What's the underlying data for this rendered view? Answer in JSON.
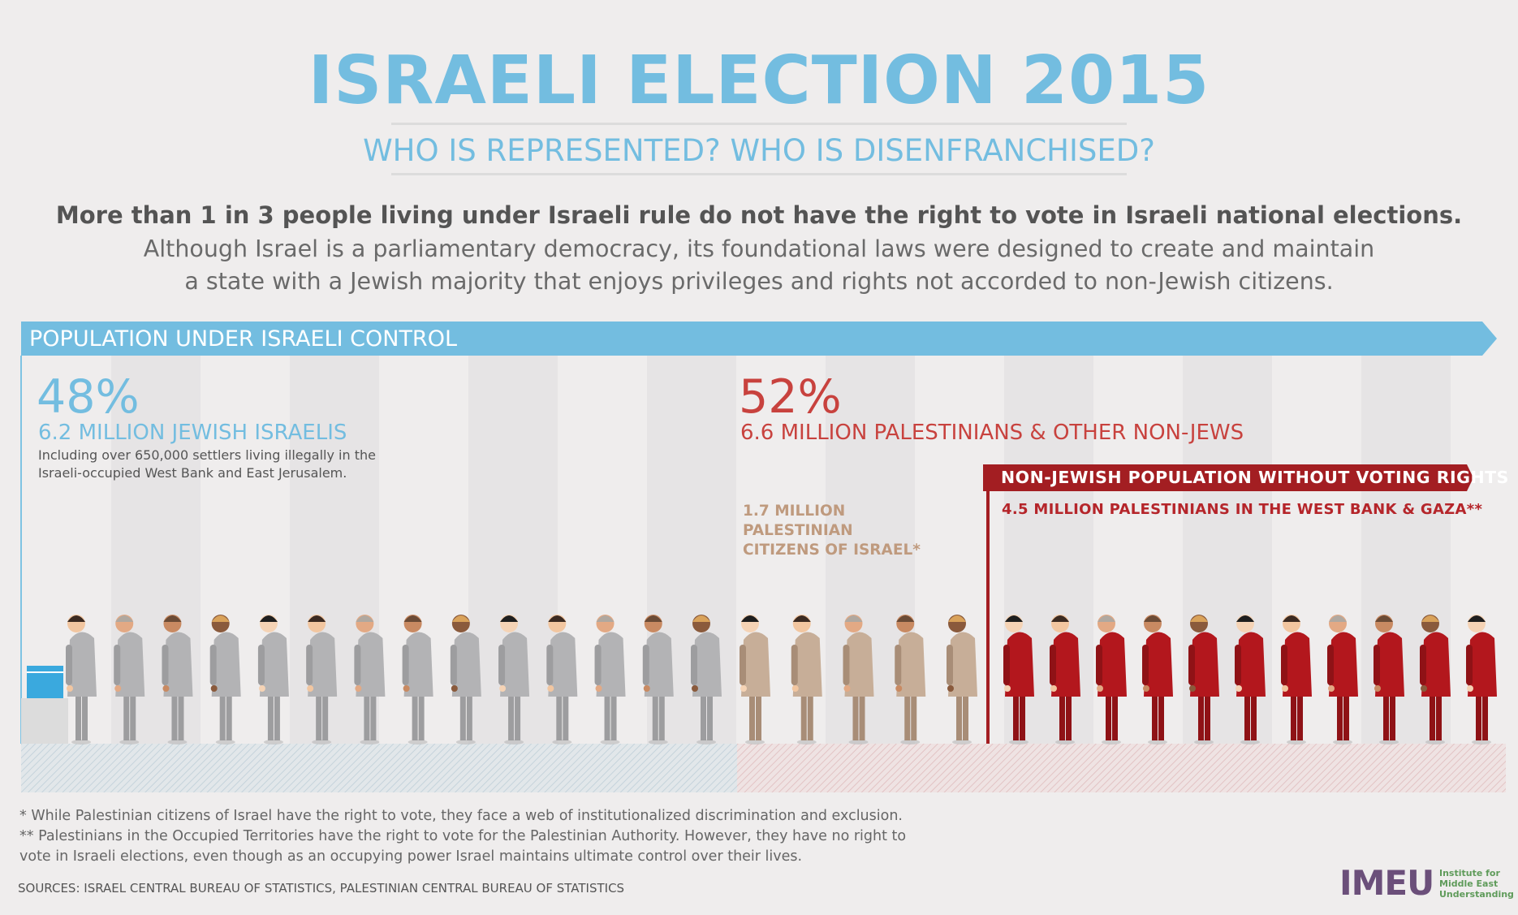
{
  "title": "ISRAELI ELECTION 2015",
  "subtitle": "WHO IS REPRESENTED? WHO IS DISENFRANCHISED?",
  "lead": "More than 1 in 3 people living under Israeli rule do not have the right to vote in Israeli national elections.",
  "body_line1": "Although Israel is a parliamentary democracy, its foundational laws were designed to create and maintain",
  "body_line2": "a state with a Jewish majority that enjoys privileges and rights not accorded to non-Jewish citizens.",
  "banner": "POPULATION UNDER ISRAELI CONTROL",
  "left_group": {
    "percent": "48%",
    "label": "6.2 MILLION JEWISH ISRAELIS",
    "note": "Including over 650,000 settlers living illegally in the Israeli-occupied West Bank and East Jerusalem."
  },
  "right_group": {
    "percent": "52%",
    "label": "6.6 MILLION PALESTINIANS & OTHER NON-JEWS",
    "citizens_line1": "1.7 MILLION PALESTINIAN",
    "citizens_line2": "CITIZENS OF ISRAEL*",
    "no_vote_banner": "NON-JEWISH POPULATION WITHOUT VOTING RIGHTS",
    "occupied": "4.5 MILLION PALESTINIANS IN THE WEST BANK & GAZA**"
  },
  "people_counts": {
    "jewish_israelis": 14,
    "palestinian_citizens": 5,
    "occupied_palestinians": 11
  },
  "colors": {
    "jewish": "#b3b3b5",
    "citizens": "#c7ae98",
    "occupied": "#b3171d",
    "accent_blue": "#73bde0",
    "accent_red": "#c8423e"
  },
  "footnotes": {
    "fn1": "* While Palestinian citizens of Israel have the right to vote, they face a web of institutionalized discrimination and exclusion.",
    "fn2": "** Palestinians in the Occupied Territories have the right to vote for the Palestinian Authority. However, they have no right to",
    "fn3": "vote in Israeli elections, even though as an occupying power Israel maintains ultimate control over their lives."
  },
  "sources": "SOURCES: ISRAEL CENTRAL BUREAU OF STATISTICS, PALESTINIAN CENTRAL BUREAU OF STATISTICS",
  "logo": {
    "text": "IMEU",
    "line1": "Institute for",
    "line2": "Middle East",
    "line3": "Understanding"
  }
}
